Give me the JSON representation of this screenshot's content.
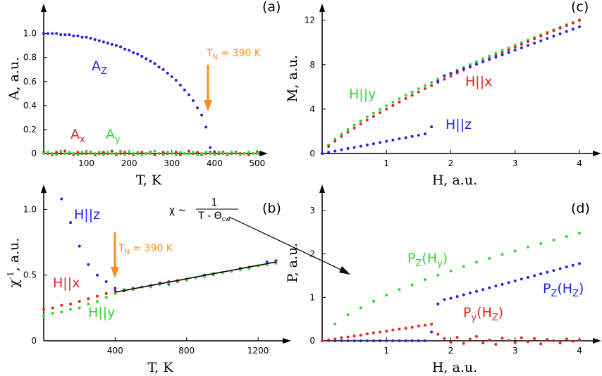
{
  "chart_data": [
    {
      "type": "scatter",
      "panel_label": "(a)",
      "xlabel": [
        "T, K"
      ],
      "ylabel": [
        "A, a.u."
      ],
      "xlim": [
        0,
        525
      ],
      "ylim": [
        0,
        1.25
      ],
      "xticks": [
        100,
        200,
        300,
        400,
        500
      ],
      "yticks": [
        0,
        0.2,
        0.4,
        0.6,
        0.8,
        {
          "value": 1,
          "label": "1.0"
        }
      ],
      "x": [
        0,
        10,
        20,
        30,
        40,
        50,
        60,
        70,
        80,
        90,
        100,
        110,
        120,
        130,
        140,
        150,
        160,
        170,
        180,
        190,
        200,
        210,
        220,
        230,
        240,
        250,
        260,
        270,
        280,
        290,
        300,
        310,
        320,
        330,
        340,
        350,
        360,
        370,
        380,
        390,
        400,
        410,
        420,
        430,
        440,
        450,
        460,
        470,
        480,
        490,
        500
      ],
      "series": [
        {
          "name": [
            "A",
            "Z"
          ],
          "color": "#2323e6",
          "values": [
            1.0,
            1.0,
            1.0,
            1.0,
            0.99,
            0.99,
            0.99,
            0.98,
            0.98,
            0.97,
            0.97,
            0.96,
            0.95,
            0.94,
            0.93,
            0.92,
            0.91,
            0.9,
            0.89,
            0.87,
            0.86,
            0.84,
            0.83,
            0.81,
            0.79,
            0.77,
            0.75,
            0.72,
            0.7,
            0.67,
            0.64,
            0.61,
            0.57,
            0.53,
            0.49,
            0.44,
            0.38,
            0.32,
            0.22,
            0.05,
            0.01,
            0,
            0,
            null,
            null,
            null,
            null,
            null,
            null,
            null,
            null
          ]
        },
        {
          "name": [
            "A",
            "x"
          ],
          "color": "#e62323",
          "values": [
            0.01,
            0,
            -0.01,
            0.01,
            0,
            0.02,
            0,
            -0.01,
            0.01,
            0,
            0,
            0.01,
            -0.01,
            0,
            0.01,
            0,
            0.02,
            -0.01,
            0,
            0.01,
            0,
            -0.01,
            0,
            0.01,
            0,
            0.01,
            -0.01,
            0,
            0.01,
            0,
            0,
            0.01,
            -0.01,
            0,
            0.02,
            0,
            0.01,
            -0.01,
            0,
            0.01,
            0,
            0,
            0.01,
            -0.01,
            0,
            0.01,
            0,
            0,
            -0.01,
            0,
            0.01
          ]
        },
        {
          "name": [
            "A",
            "y"
          ],
          "color": "#33d633",
          "values": [
            0,
            0.01,
            0,
            -0.01,
            0.02,
            0,
            0.01,
            0,
            -0.01,
            0.01,
            0.02,
            0,
            0,
            0.01,
            -0.01,
            0.01,
            0,
            0,
            0.02,
            -0.01,
            0.01,
            0,
            0.01,
            -0.01,
            0,
            0,
            0.02,
            0,
            -0.01,
            0.01,
            0,
            -0.01,
            0.01,
            0,
            0,
            0.01,
            -0.01,
            0,
            0.01,
            0,
            -0.01,
            0.01,
            0,
            0,
            0.01,
            0,
            -0.01,
            0,
            0.01,
            0,
            0
          ]
        }
      ],
      "annotations": [
        {
          "parts": [
            "T",
            "N",
            " = 390 K"
          ],
          "color": "#ff8c1a"
        }
      ]
    },
    {
      "type": "scatter",
      "panel_label": "(b)",
      "xlabel": [
        "T, K"
      ],
      "ylabel": [
        "χ",
        "-1",
        ", a.u."
      ],
      "xlim": [
        0,
        1385
      ],
      "ylim": [
        0,
        1.19
      ],
      "xticks": [
        400,
        800,
        1200
      ],
      "yticks": [
        0,
        0.5,
        {
          "value": 1,
          "label": "1.0"
        }
      ],
      "x": [
        0,
        50,
        100,
        150,
        200,
        250,
        300,
        350,
        400,
        450,
        500,
        550,
        600,
        650,
        700,
        750,
        800,
        850,
        900,
        950,
        1000,
        1050,
        1100,
        1150,
        1200,
        1250,
        1300
      ],
      "series": [
        {
          "name": [
            "H||z"
          ],
          "color": "#2323e6",
          "values": [
            null,
            null,
            1.08,
            0.9,
            0.72,
            0.58,
            0.5,
            0.45,
            0.4,
            0.39,
            0.4,
            0.41,
            0.42,
            0.44,
            0.43,
            0.46,
            0.47,
            0.48,
            0.5,
            0.51,
            0.52,
            0.53,
            0.55,
            0.56,
            0.57,
            0.6,
            0.61
          ]
        },
        {
          "name": [
            "H||x"
          ],
          "color": "#e62323",
          "values": [
            0.24,
            0.25,
            0.27,
            0.28,
            0.3,
            0.32,
            0.34,
            0.36,
            0.38,
            0.38,
            0.4,
            0.41,
            0.42,
            0.43,
            0.45,
            0.45,
            0.47,
            0.48,
            0.49,
            0.51,
            0.52,
            0.53,
            0.54,
            0.56,
            0.57,
            0.58,
            0.6
          ]
        },
        {
          "name": [
            "H||y"
          ],
          "color": "#33d633",
          "values": [
            0.19,
            0.21,
            0.22,
            0.24,
            0.25,
            0.28,
            0.3,
            0.33,
            0.36,
            0.39,
            0.39,
            0.41,
            0.41,
            0.43,
            0.44,
            0.46,
            0.46,
            0.48,
            0.49,
            0.5,
            0.52,
            0.53,
            0.54,
            0.55,
            0.57,
            0.58,
            0.59
          ]
        },
        {
          "style": "line",
          "color": "#000000",
          "values": [
            null,
            null,
            null,
            null,
            null,
            null,
            null,
            null,
            0.37,
            0.383,
            0.396,
            0.408,
            0.421,
            0.434,
            0.447,
            0.459,
            0.472,
            0.485,
            0.498,
            0.511,
            0.523,
            0.536,
            0.549,
            0.562,
            0.574,
            0.587,
            0.6
          ]
        }
      ],
      "annotations": [
        {
          "parts": [
            "T",
            "N",
            " = 390 K"
          ],
          "color": "#ff8c1a"
        }
      ],
      "formula": {
        "lhs": "χ ~",
        "numerator": "1",
        "denominator": [
          "T - Θ",
          "cw"
        ]
      }
    },
    {
      "type": "scatter",
      "panel_label": "(c)",
      "xlabel": [
        "H, a.u."
      ],
      "ylabel": [
        "M, a.u."
      ],
      "xlim": [
        0,
        4.34
      ],
      "ylim": [
        0,
        13.5
      ],
      "xticks": [
        1,
        2,
        3,
        4
      ],
      "yticks": [
        0,
        4,
        8,
        12
      ],
      "x": [
        0,
        0.1,
        0.2,
        0.3,
        0.4,
        0.5,
        0.6,
        0.7,
        0.8,
        0.9,
        1,
        1.1,
        1.2,
        1.3,
        1.4,
        1.5,
        1.6,
        1.7,
        1.8,
        1.9,
        2,
        2.1,
        2.2,
        2.3,
        2.4,
        2.5,
        2.6,
        2.7,
        2.8,
        2.9,
        3,
        3.1,
        3.2,
        3.3,
        3.4,
        3.5,
        3.6,
        3.7,
        3.8,
        3.9,
        4
      ],
      "series": [
        {
          "name": [
            "H||y"
          ],
          "color": "#33d633",
          "values": [
            0,
            0.76,
            1.29,
            1.74,
            2.16,
            2.56,
            2.93,
            3.28,
            3.64,
            3.97,
            4.3,
            4.62,
            4.93,
            5.24,
            5.53,
            5.83,
            6.12,
            6.4,
            6.68,
            6.95,
            7.23,
            7.49,
            7.75,
            8.01,
            8.27,
            8.52,
            8.77,
            9.02,
            9.27,
            9.51,
            9.75,
            9.98,
            10.22,
            10.45,
            10.68,
            10.91,
            11.14,
            11.36,
            11.58,
            11.8,
            12.02
          ]
        },
        {
          "name": [
            "H||x"
          ],
          "color": "#e62323",
          "values": [
            0,
            0.63,
            1.1,
            1.53,
            1.92,
            2.3,
            2.66,
            3.0,
            3.34,
            3.67,
            4.0,
            4.32,
            4.63,
            4.94,
            5.24,
            5.54,
            5.83,
            6.12,
            6.41,
            6.69,
            6.96,
            7.24,
            7.51,
            7.78,
            8.04,
            8.3,
            8.56,
            8.82,
            9.08,
            9.33,
            9.58,
            9.83,
            10.08,
            10.32,
            10.57,
            10.81,
            11.05,
            11.28,
            11.52,
            11.75,
            11.98
          ]
        },
        {
          "name": [
            "H||z"
          ],
          "color": "#2323e6",
          "values": [
            0,
            0.11,
            0.22,
            0.33,
            0.44,
            0.55,
            0.66,
            0.77,
            0.88,
            0.99,
            1.1,
            1.21,
            1.32,
            1.43,
            1.54,
            1.65,
            1.76,
            2.4,
            6.5,
            7.0,
            7.2,
            7.41,
            7.62,
            7.83,
            8.04,
            8.25,
            8.46,
            8.67,
            8.88,
            9.09,
            9.3,
            9.51,
            9.72,
            9.93,
            10.14,
            10.35,
            10.56,
            10.77,
            10.98,
            11.19,
            11.4
          ]
        }
      ]
    },
    {
      "type": "scatter",
      "panel_label": "(d)",
      "xlabel": [
        "H, a.u."
      ],
      "ylabel": [
        "P, a.u."
      ],
      "xlim": [
        0,
        4.34
      ],
      "ylim": [
        0,
        3.6
      ],
      "xticks": [
        1,
        2,
        3,
        4
      ],
      "yticks": [
        0,
        1,
        2,
        3
      ],
      "x": [
        0,
        0.1,
        0.2,
        0.3,
        0.4,
        0.5,
        0.6,
        0.7,
        0.8,
        0.9,
        1,
        1.1,
        1.2,
        1.3,
        1.4,
        1.5,
        1.6,
        1.7,
        1.8,
        1.9,
        2,
        2.1,
        2.2,
        2.3,
        2.4,
        2.5,
        2.6,
        2.7,
        2.8,
        2.9,
        3,
        3.1,
        3.2,
        3.3,
        3.4,
        3.5,
        3.6,
        3.7,
        3.8,
        3.9,
        4
      ],
      "series": [
        {
          "name": [
            "P",
            "Z",
            "(H",
            "y",
            ")"
          ],
          "color": "#33d633",
          "values": [
            0,
            null,
            0.39,
            null,
            0.6,
            null,
            0.76,
            null,
            0.91,
            null,
            1.05,
            null,
            1.18,
            null,
            1.29,
            null,
            1.41,
            null,
            1.51,
            null,
            1.61,
            null,
            1.71,
            null,
            1.81,
            null,
            1.9,
            null,
            1.99,
            null,
            2.07,
            null,
            2.16,
            null,
            2.24,
            null,
            2.32,
            null,
            2.4,
            null,
            2.48
          ]
        },
        {
          "name": [
            "P",
            "Z",
            "(H",
            "Z",
            ")"
          ],
          "color": "#2323e6",
          "values": [
            0,
            0,
            0,
            0,
            0,
            0,
            0,
            0,
            0,
            0,
            0,
            0,
            0,
            0,
            0,
            0,
            0,
            0.2,
            0.85,
            0.95,
            0.98,
            1.02,
            1.06,
            1.1,
            1.14,
            1.18,
            1.22,
            1.26,
            1.3,
            1.34,
            1.38,
            1.42,
            1.46,
            1.5,
            1.54,
            1.58,
            1.62,
            1.66,
            1.7,
            1.74,
            1.78
          ]
        },
        {
          "name": [
            "P",
            "y",
            "(H",
            "Z",
            ")"
          ],
          "color": "#e62323",
          "values": [
            0,
            0.02,
            0.04,
            0.07,
            0.09,
            0.11,
            0.13,
            0.16,
            0.18,
            0.2,
            0.22,
            0.25,
            0.27,
            0.29,
            0.31,
            0.34,
            0.36,
            0.38,
            0.15,
            0.05,
            -0.03,
            0.08,
            -0.06,
            0.04,
            0.1,
            -0.05,
            0.02,
            -0.08,
            0.06,
            0.01,
            -0.04,
            0.07,
            -0.02,
            0.05,
            -0.07,
            0.03,
            0,
            -0.05,
            0.04,
            -0.01,
            0.02
          ]
        }
      ]
    }
  ]
}
